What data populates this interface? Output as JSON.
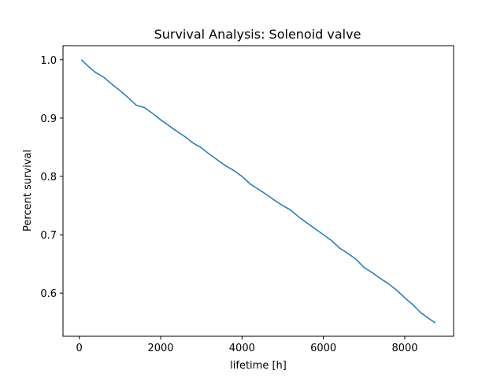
{
  "chart_data": {
    "type": "line",
    "title": "Survival Analysis: Solenoid valve",
    "xlabel": "lifetime [h]",
    "ylabel": "Percent survival",
    "xlim": [
      -400,
      9200
    ],
    "ylim": [
      0.526,
      1.024
    ],
    "xticks": [
      0,
      2000,
      4000,
      6000,
      8000
    ],
    "yticks": [
      0.6,
      0.7,
      0.8,
      0.9,
      1.0
    ],
    "xtick_labels": [
      "0",
      "2000",
      "4000",
      "6000",
      "8000"
    ],
    "ytick_labels": [
      "0.6",
      "0.7",
      "0.8",
      "0.9",
      "1.0"
    ],
    "grid": false,
    "series": [
      {
        "color": "#1f77b4",
        "x": [
          50,
          200,
          400,
          600,
          800,
          1000,
          1200,
          1400,
          1600,
          1800,
          2000,
          2200,
          2400,
          2600,
          2800,
          3000,
          3200,
          3400,
          3600,
          3800,
          4000,
          4200,
          4400,
          4600,
          4800,
          5000,
          5200,
          5400,
          5600,
          5800,
          6000,
          6200,
          6400,
          6600,
          6800,
          7000,
          7200,
          7400,
          7600,
          7800,
          8000,
          8200,
          8400,
          8600,
          8750
        ],
        "y": [
          1.0,
          0.99,
          0.978,
          0.97,
          0.958,
          0.947,
          0.935,
          0.922,
          0.918,
          0.908,
          0.897,
          0.887,
          0.877,
          0.868,
          0.857,
          0.849,
          0.838,
          0.828,
          0.818,
          0.81,
          0.8,
          0.787,
          0.778,
          0.769,
          0.759,
          0.75,
          0.742,
          0.73,
          0.72,
          0.71,
          0.7,
          0.69,
          0.677,
          0.668,
          0.658,
          0.644,
          0.635,
          0.625,
          0.616,
          0.605,
          0.592,
          0.58,
          0.566,
          0.556,
          0.549
        ]
      }
    ]
  }
}
